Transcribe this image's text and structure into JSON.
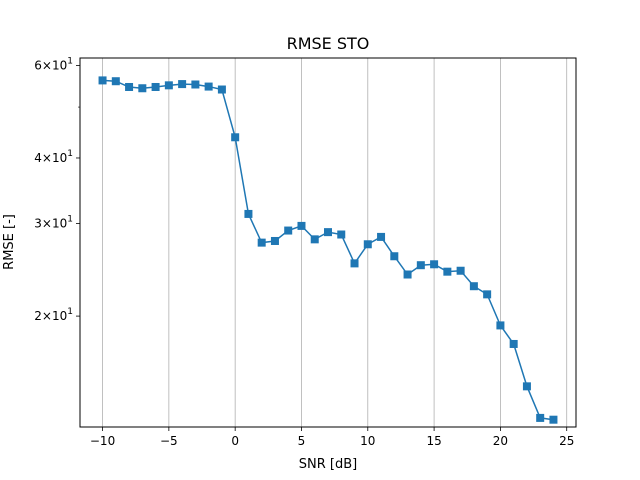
{
  "chart_data": {
    "type": "line",
    "title": "RMSE STO",
    "xlabel": "SNR [dB]",
    "ylabel": "RMSE [-]",
    "x_scale": "linear",
    "y_scale": "log",
    "xlim": [
      -11.7,
      25.7
    ],
    "ylim": [
      12.3,
      62.0
    ],
    "grid": "vertical (x) gridlines",
    "marker": "square",
    "color": "#1f77b4",
    "x_ticks": [
      -10,
      -5,
      0,
      5,
      10,
      15,
      20,
      25
    ],
    "x_tick_labels": [
      "−10",
      "−5",
      "0",
      "5",
      "10",
      "15",
      "20",
      "25"
    ],
    "y_ticks": [
      {
        "value": 20,
        "base": "2×10",
        "exp": "1"
      },
      {
        "value": 30,
        "base": "3×10",
        "exp": "1"
      },
      {
        "value": 40,
        "base": "4×10",
        "exp": "1"
      },
      {
        "value": 60,
        "base": "6×10",
        "exp": "1"
      }
    ],
    "series": [
      {
        "name": "RMSE STO",
        "x": [
          -10,
          -9,
          -8,
          -7,
          -6,
          -5,
          -4,
          -3,
          -2,
          -1,
          0,
          1,
          2,
          3,
          4,
          5,
          6,
          7,
          8,
          9,
          10,
          11,
          12,
          13,
          14,
          15,
          16,
          17,
          18,
          19,
          20,
          21,
          22,
          23,
          24
        ],
        "y": [
          56.2,
          56.0,
          54.6,
          54.3,
          54.6,
          55.0,
          55.3,
          55.2,
          54.7,
          54.0,
          43.8,
          31.3,
          27.6,
          27.8,
          29.1,
          29.7,
          28.0,
          28.9,
          28.6,
          25.2,
          27.4,
          28.3,
          26.0,
          24.0,
          25.0,
          25.1,
          24.3,
          24.4,
          22.8,
          22.0,
          19.2,
          17.7,
          14.7,
          12.8,
          12.7
        ]
      }
    ]
  }
}
